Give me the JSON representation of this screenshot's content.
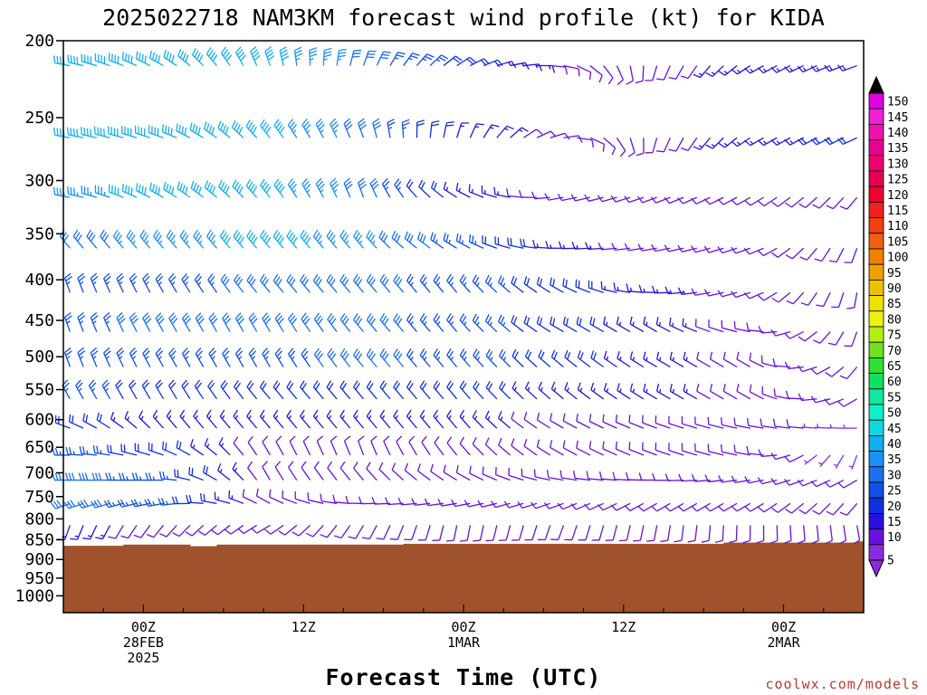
{
  "chart_data": {
    "type": "wind-barb-profile",
    "title": "2025022718 NAM3KM forecast wind profile (kt) for KIDA",
    "xlabel": "Forecast Time (UTC)",
    "ylabel": "",
    "credit": "coolwx.com/models",
    "y_scale": "log-pressure",
    "y_units": "hPa",
    "ylim": [
      200,
      1000
    ],
    "y_ticks": [
      "200",
      "250",
      "300",
      "350",
      "400",
      "450",
      "500",
      "550",
      "600",
      "650",
      "700",
      "750",
      "800",
      "850",
      "900",
      "950",
      "1000"
    ],
    "x_ticks": [
      {
        "lines": [
          "00Z",
          "28FEB",
          "2025"
        ],
        "hour": 6
      },
      {
        "lines": [
          "12Z"
        ],
        "hour": 18
      },
      {
        "lines": [
          "00Z",
          "1MAR"
        ],
        "hour": 30
      },
      {
        "lines": [
          "12Z"
        ],
        "hour": 42
      },
      {
        "lines": [
          "00Z",
          "2MAR"
        ],
        "hour": 54
      }
    ],
    "forecast_hours": {
      "start": 0,
      "end": 60,
      "step": 1
    },
    "terrain": {
      "color": "#a0522d",
      "surface_pressure_hPa": [
        {
          "from_hour": 0,
          "to_hour": 4.5,
          "p": 865
        },
        {
          "from_hour": 4.5,
          "to_hour": 9.5,
          "p": 862
        },
        {
          "from_hour": 9.5,
          "to_hour": 11.5,
          "p": 866
        },
        {
          "from_hour": 11.5,
          "to_hour": 25.5,
          "p": 862
        },
        {
          "from_hour": 25.5,
          "to_hour": 49.5,
          "p": 860
        },
        {
          "from_hour": 49.5,
          "to_hour": 59.5,
          "p": 857
        },
        {
          "from_hour": 59.5,
          "to_hour": 60,
          "p": 854
        }
      ]
    },
    "colorbar": {
      "values": [
        5,
        10,
        15,
        20,
        25,
        30,
        35,
        40,
        45,
        50,
        55,
        60,
        65,
        70,
        75,
        80,
        85,
        90,
        95,
        100,
        105,
        110,
        115,
        120,
        125,
        130,
        135,
        140,
        145,
        150
      ],
      "colors": [
        "#8a2be2",
        "#6a10e0",
        "#2a10e0",
        "#1030e0",
        "#1050e8",
        "#1a70f0",
        "#1a90f8",
        "#10b0f0",
        "#10d8e0",
        "#10f0c8",
        "#10e8a0",
        "#10e060",
        "#30e030",
        "#70e020",
        "#b0f010",
        "#f0f010",
        "#f0e000",
        "#f0c000",
        "#f0a000",
        "#f08000",
        "#f06010",
        "#f04010",
        "#f02020",
        "#f00030",
        "#e80050",
        "#f00070",
        "#e80090",
        "#f010b0",
        "#f020d8",
        "#e000e0"
      ]
    },
    "levels_hPa": [
      215,
      265,
      315,
      365,
      415,
      465,
      515,
      565,
      615,
      665,
      715,
      765,
      815
    ],
    "series": [
      {
        "p": 215,
        "hours": [
          0,
          59
        ],
        "dir_deg": [
          280,
          300,
          340,
          20,
          60,
          100,
          200,
          240,
          250
        ],
        "speed_kt": [
          40,
          40,
          40,
          30,
          20,
          10,
          10,
          15,
          15
        ]
      },
      {
        "p": 265,
        "hours": [
          0,
          59
        ],
        "dir_deg": [
          280,
          290,
          320,
          340,
          20,
          80,
          200,
          240,
          245
        ],
        "speed_kt": [
          40,
          40,
          40,
          30,
          15,
          10,
          10,
          15,
          20
        ]
      },
      {
        "p": 315,
        "hours": [
          0,
          59
        ],
        "dir_deg": [
          280,
          300,
          320,
          340,
          300,
          260,
          250,
          240,
          220
        ],
        "speed_kt": [
          35,
          40,
          40,
          30,
          15,
          10,
          10,
          10,
          10
        ]
      },
      {
        "p": 365,
        "hours": [
          0,
          59
        ],
        "dir_deg": [
          320,
          320,
          320,
          320,
          300,
          270,
          260,
          250,
          200
        ],
        "speed_kt": [
          30,
          35,
          40,
          35,
          25,
          15,
          10,
          10,
          10
        ]
      },
      {
        "p": 415,
        "hours": [
          0,
          59
        ],
        "dir_deg": [
          340,
          330,
          320,
          320,
          320,
          300,
          270,
          250,
          190
        ],
        "speed_kt": [
          25,
          25,
          30,
          30,
          25,
          20,
          15,
          10,
          10
        ]
      },
      {
        "p": 465,
        "hours": [
          0,
          59
        ],
        "dir_deg": [
          340,
          330,
          330,
          320,
          320,
          300,
          300,
          280,
          200
        ],
        "speed_kt": [
          25,
          30,
          30,
          30,
          25,
          20,
          15,
          10,
          10
        ]
      },
      {
        "p": 515,
        "hours": [
          0,
          59
        ],
        "dir_deg": [
          340,
          330,
          330,
          320,
          320,
          310,
          300,
          300,
          220
        ],
        "speed_kt": [
          25,
          25,
          25,
          30,
          25,
          20,
          15,
          10,
          10
        ]
      },
      {
        "p": 565,
        "hours": [
          0,
          59
        ],
        "dir_deg": [
          330,
          330,
          320,
          320,
          320,
          310,
          300,
          300,
          240
        ],
        "speed_kt": [
          25,
          20,
          20,
          20,
          20,
          15,
          15,
          10,
          10
        ]
      },
      {
        "p": 615,
        "hours": [
          0,
          59
        ],
        "dir_deg": [
          290,
          320,
          320,
          320,
          320,
          300,
          290,
          280,
          270
        ],
        "speed_kt": [
          20,
          15,
          15,
          15,
          15,
          10,
          10,
          10,
          5
        ]
      },
      {
        "p": 665,
        "hours": [
          0,
          59
        ],
        "dir_deg": [
          270,
          290,
          330,
          340,
          320,
          300,
          290,
          280,
          200
        ],
        "speed_kt": [
          25,
          20,
          10,
          10,
          10,
          10,
          10,
          10,
          5
        ]
      },
      {
        "p": 715,
        "hours": [
          0,
          59
        ],
        "dir_deg": [
          270,
          270,
          330,
          320,
          300,
          280,
          270,
          260,
          240
        ],
        "speed_kt": [
          30,
          25,
          10,
          10,
          10,
          10,
          10,
          10,
          10
        ]
      },
      {
        "p": 765,
        "hours": [
          0,
          59
        ],
        "dir_deg": [
          250,
          260,
          300,
          270,
          260,
          250,
          240,
          240,
          220
        ],
        "speed_kt": [
          30,
          25,
          10,
          10,
          10,
          10,
          10,
          10,
          10
        ]
      },
      {
        "p": 815,
        "hours": [
          0,
          59
        ],
        "dir_deg": [
          200,
          220,
          240,
          210,
          190,
          200,
          190,
          180,
          170
        ],
        "speed_kt": [
          15,
          10,
          10,
          10,
          10,
          10,
          10,
          10,
          10
        ]
      }
    ]
  }
}
